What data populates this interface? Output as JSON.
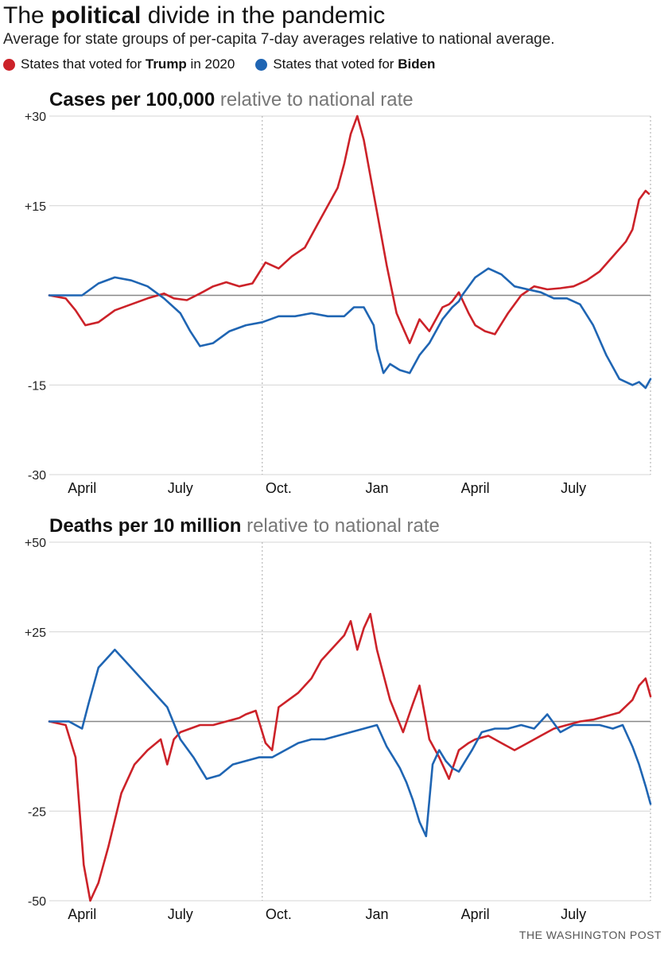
{
  "header": {
    "title_pre": "The ",
    "title_bold": "political",
    "title_post": " divide in the pandemic",
    "subtitle": "Average for state groups of per-capita 7-day averages relative to national average."
  },
  "legend": {
    "trump_pre": "States that voted for ",
    "trump_bold": "Trump",
    "trump_post": " in 2020",
    "biden_pre": "States that voted for ",
    "biden_bold": "Biden"
  },
  "colors": {
    "trump": "#cc2229",
    "biden": "#1f65b3",
    "grid": "#d4d4d4",
    "zero": "#888888"
  },
  "credit": "THE WASHINGTON POST",
  "chart_data": [
    {
      "type": "line",
      "title_bold": "Cases per 100,000",
      "title_sub": " relative to national rate",
      "ylim": [
        -30,
        30
      ],
      "yticks": [
        -30,
        -15,
        0,
        15,
        30
      ],
      "ytick_labels": [
        "-30",
        "-15",
        "",
        "+15",
        "+30"
      ],
      "x_months": [
        "April",
        "July",
        "Oct.",
        "Jan",
        "April",
        "July"
      ],
      "month_positions": [
        3,
        6,
        9,
        12,
        15,
        18
      ],
      "x_range": [
        2,
        20.35
      ],
      "vlines": [
        8.5,
        20.35
      ],
      "series": [
        {
          "name": "States that voted for Trump in 2020",
          "key": "trump",
          "x": [
            2,
            2.5,
            2.8,
            3.1,
            3.5,
            4,
            4.5,
            5,
            5.5,
            5.8,
            6.2,
            6.6,
            7,
            7.4,
            7.8,
            8.2,
            8.6,
            9,
            9.4,
            9.8,
            10.2,
            10.5,
            10.8,
            11,
            11.2,
            11.4,
            11.6,
            11.8,
            12,
            12.3,
            12.6,
            13,
            13.3,
            13.6,
            14,
            14.2,
            14.3,
            14.5,
            14.8,
            15,
            15.3,
            15.6,
            16,
            16.4,
            16.8,
            17.2,
            17.6,
            18,
            18.4,
            18.8,
            19.2,
            19.6,
            19.8,
            20,
            20.2,
            20.3
          ],
          "y": [
            0,
            -0.5,
            -2.5,
            -5,
            -4.5,
            -2.5,
            -1.5,
            -0.5,
            0.3,
            -0.5,
            -0.8,
            0.3,
            1.5,
            2.2,
            1.5,
            2,
            5.5,
            4.5,
            6.5,
            8,
            12,
            15,
            18,
            22,
            27,
            30,
            26,
            20,
            14,
            5,
            -3,
            -8,
            -4,
            -6,
            -2,
            -1.5,
            -1,
            0.5,
            -3,
            -5,
            -6,
            -6.5,
            -3,
            0,
            1.5,
            1,
            1.2,
            1.5,
            2.5,
            4,
            6.5,
            9,
            11,
            16,
            17.5,
            17
          ]
        },
        {
          "name": "States that voted for Biden",
          "key": "biden",
          "x": [
            2,
            2.5,
            3,
            3.5,
            4,
            4.5,
            5,
            5.5,
            6,
            6.3,
            6.6,
            7,
            7.5,
            8,
            8.5,
            9,
            9.5,
            10,
            10.5,
            11,
            11.3,
            11.6,
            11.9,
            12,
            12.2,
            12.4,
            12.7,
            13,
            13.3,
            13.6,
            14,
            14.3,
            14.5,
            14.6,
            15,
            15.4,
            15.8,
            16.2,
            16.6,
            17,
            17.4,
            17.8,
            18.2,
            18.6,
            19,
            19.4,
            19.8,
            20,
            20.2,
            20.35
          ],
          "y": [
            0,
            0,
            0,
            2,
            3,
            2.5,
            1.5,
            -0.5,
            -3,
            -6,
            -8.5,
            -8,
            -6,
            -5,
            -4.5,
            -3.5,
            -3.5,
            -3,
            -3.5,
            -3.5,
            -2,
            -2,
            -5,
            -9,
            -13,
            -11.5,
            -12.5,
            -13,
            -10,
            -8,
            -4,
            -2,
            -1,
            0,
            3,
            4.5,
            3.5,
            1.5,
            1,
            0.5,
            -0.5,
            -0.5,
            -1.5,
            -5,
            -10,
            -14,
            -15,
            -14.5,
            -15.5,
            -14
          ]
        }
      ]
    },
    {
      "type": "line",
      "title_bold": "Deaths per 10 million",
      "title_sub": " relative to national rate",
      "ylim": [
        -50,
        50
      ],
      "yticks": [
        -50,
        -25,
        0,
        25,
        50
      ],
      "ytick_labels": [
        "-50",
        "-25",
        "",
        "+25",
        "+50"
      ],
      "x_months": [
        "April",
        "July",
        "Oct.",
        "Jan",
        "April",
        "July"
      ],
      "month_positions": [
        3,
        6,
        9,
        12,
        15,
        18
      ],
      "x_range": [
        2,
        20.35
      ],
      "vlines": [
        8.5,
        20.35
      ],
      "series": [
        {
          "name": "States that voted for Trump in 2020",
          "key": "trump",
          "x": [
            2,
            2.5,
            2.8,
            3.05,
            3.25,
            3.5,
            3.8,
            4.2,
            4.6,
            5,
            5.4,
            5.6,
            5.8,
            6,
            6.3,
            6.6,
            7,
            7.4,
            7.8,
            8,
            8.3,
            8.6,
            8.8,
            9,
            9.3,
            9.6,
            10,
            10.3,
            10.6,
            11,
            11.2,
            11.4,
            11.6,
            11.8,
            12,
            12.4,
            12.8,
            13.1,
            13.3,
            13.6,
            13.9,
            14.2,
            14.5,
            14.8,
            15,
            15.4,
            15.8,
            16.2,
            16.6,
            17,
            17.4,
            17.8,
            18.2,
            18.6,
            19,
            19.4,
            19.8,
            20,
            20.2,
            20.35
          ],
          "y": [
            0,
            -1,
            -10,
            -40,
            -50,
            -45,
            -35,
            -20,
            -12,
            -8,
            -5,
            -12,
            -5,
            -3,
            -2,
            -1,
            -1,
            0,
            1,
            2,
            3,
            -6,
            -8,
            4,
            6,
            8,
            12,
            17,
            20,
            24,
            28,
            20,
            26,
            30,
            20,
            6,
            -3,
            5,
            10,
            -5,
            -10,
            -16,
            -8,
            -6,
            -5,
            -4,
            -6,
            -8,
            -6,
            -4,
            -2,
            -1,
            0,
            0.5,
            1.5,
            2.5,
            6,
            10,
            12,
            7
          ]
        },
        {
          "name": "States that voted for Biden",
          "key": "biden",
          "x": [
            2,
            2.6,
            3,
            3.2,
            3.5,
            4,
            4.4,
            4.8,
            5.2,
            5.6,
            6,
            6.4,
            6.8,
            7.2,
            7.6,
            8,
            8.4,
            8.8,
            9.2,
            9.6,
            10,
            10.4,
            10.8,
            11.2,
            11.6,
            12,
            12.3,
            12.5,
            12.7,
            12.9,
            13.1,
            13.3,
            13.5,
            13.7,
            13.9,
            14.1,
            14.3,
            14.5,
            14.7,
            14.9,
            15.2,
            15.6,
            16,
            16.4,
            16.8,
            17.2,
            17.6,
            18,
            18.4,
            18.8,
            19.2,
            19.5,
            19.8,
            20,
            20.2,
            20.35
          ],
          "y": [
            0,
            0,
            -2,
            5,
            15,
            20,
            16,
            12,
            8,
            4,
            -5,
            -10,
            -16,
            -15,
            -12,
            -11,
            -10,
            -10,
            -8,
            -6,
            -5,
            -5,
            -4,
            -3,
            -2,
            -1,
            -7,
            -10,
            -13,
            -17,
            -22,
            -28,
            -32,
            -12,
            -8,
            -11,
            -13,
            -14,
            -11,
            -8,
            -3,
            -2,
            -2,
            -1,
            -2,
            2,
            -3,
            -1,
            -1,
            -1,
            -2,
            -1,
            -7,
            -12,
            -18,
            -23
          ]
        }
      ]
    }
  ]
}
